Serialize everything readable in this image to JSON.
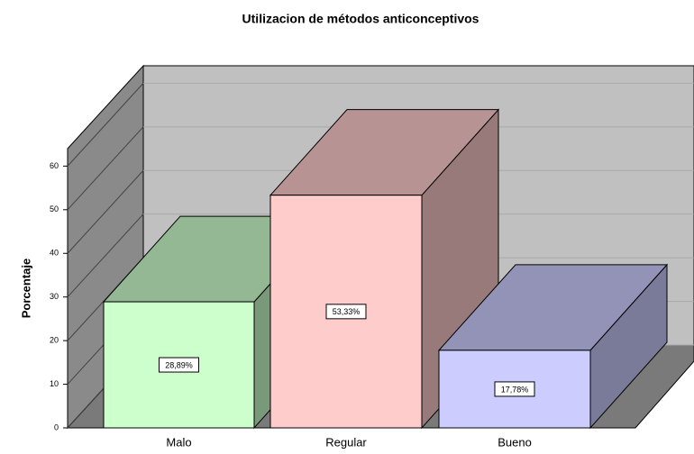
{
  "chart_data": {
    "type": "bar3d",
    "title": "Utilizacion de métodos  anticonceptivos",
    "y_label": "Porcentaje",
    "categories": [
      "Malo",
      "Regular",
      "Bueno"
    ],
    "values": [
      28.89,
      53.33,
      17.78
    ],
    "value_labels": [
      "28,89%",
      "53,33%",
      "17,78%"
    ],
    "colors": [
      "#ccffcc",
      "#ffcccc",
      "#ccccff"
    ],
    "ylim": [
      0,
      64
    ],
    "yticks": [
      0,
      10,
      20,
      30,
      40,
      50,
      60
    ],
    "grid": true
  }
}
